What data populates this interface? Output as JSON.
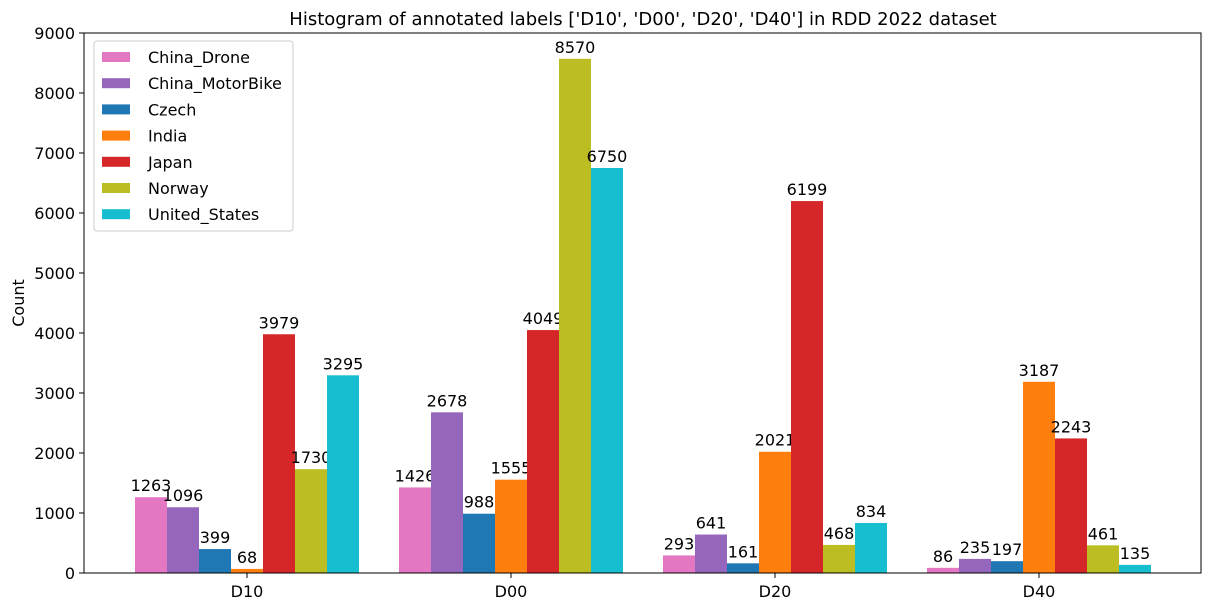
{
  "chart_data": {
    "type": "bar",
    "title": "Histogram of annotated labels ['D10', 'D00', 'D20', 'D40'] in RDD 2022 dataset",
    "xlabel": "",
    "ylabel": "Count",
    "ylim": [
      0,
      9000
    ],
    "yticks": [
      0,
      1000,
      2000,
      3000,
      4000,
      5000,
      6000,
      7000,
      8000,
      9000
    ],
    "categories": [
      "D10",
      "D00",
      "D20",
      "D40"
    ],
    "legend_position": "top-left",
    "grid": false,
    "series": [
      {
        "name": "China_Drone",
        "color": "#e377c2",
        "values": [
          1263,
          1426,
          293,
          86
        ]
      },
      {
        "name": "China_MotorBike",
        "color": "#9467bd",
        "values": [
          1096,
          2678,
          641,
          235
        ]
      },
      {
        "name": "Czech",
        "color": "#1f77b4",
        "values": [
          399,
          988,
          161,
          197
        ]
      },
      {
        "name": "India",
        "color": "#ff7f0e",
        "values": [
          68,
          1555,
          2021,
          3187
        ]
      },
      {
        "name": "Japan",
        "color": "#d62728",
        "values": [
          3979,
          4049,
          6199,
          2243
        ]
      },
      {
        "name": "Norway",
        "color": "#bcbd22",
        "values": [
          1730,
          8570,
          468,
          461
        ]
      },
      {
        "name": "United_States",
        "color": "#17becf",
        "values": [
          3295,
          6750,
          834,
          135
        ]
      }
    ]
  }
}
